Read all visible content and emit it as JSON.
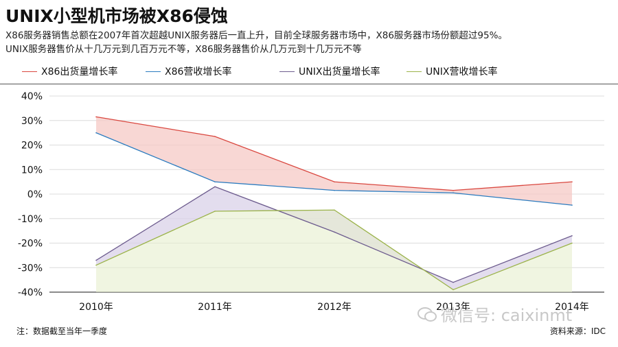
{
  "header": {
    "title": "UNIX小型机市场被X86侵蚀",
    "subtitle_line1": "X86服务器销售总额在2007年首次超越UNIX服务器后一直上升，目前全球服务器市场中，X86服务器市场份额超过95%。",
    "subtitle_line2": "UNIX服务器售价从十几万元到几百万元不等，X86服务器售价从几万元到十几万元不等"
  },
  "footer": {
    "note": "注：数据截至当年一季度",
    "source": "资料来源：IDC"
  },
  "watermark": {
    "text": "微信号: caixinmt",
    "icon": "wechat-icon"
  },
  "chart_data": {
    "type": "line",
    "x": [
      "2010年",
      "2011年",
      "2012年",
      "2013年",
      "2014年"
    ],
    "y_ticks": [
      "40%",
      "30%",
      "20%",
      "10%",
      "0%",
      "-10%",
      "-20%",
      "-30%",
      "-40%"
    ],
    "ylim": [
      -40,
      40
    ],
    "grid": true,
    "legend_position": "top",
    "series": [
      {
        "name": "X86出货量增长率",
        "color": "#d9463e",
        "fill": "#f5c9c6",
        "values": [
          31.5,
          23.5,
          5,
          1.5,
          5
        ]
      },
      {
        "name": "X86营收增长率",
        "color": "#2a7bbf",
        "fill": null,
        "values": [
          25,
          5,
          1.5,
          0.5,
          -4.5
        ]
      },
      {
        "name": "UNIX出货量增长率",
        "color": "#6d5c8e",
        "fill": "#d9d2e8",
        "values": [
          -27,
          3,
          -15.5,
          -36,
          -17
        ]
      },
      {
        "name": "UNIX营收增长率",
        "color": "#9bb34a",
        "fill": "#e6efcd",
        "values": [
          -29,
          -7,
          -6.5,
          -39,
          -20
        ]
      }
    ]
  }
}
